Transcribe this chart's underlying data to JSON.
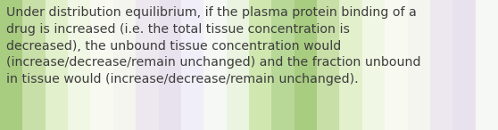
{
  "text": "Under distribution equilibrium, if the plasma protein binding of a\ndrug is increased (i.e. the total tissue concentration is\ndecreased), the unbound tissue concentration would\n(increase/decrease/remain unchanged) and the fraction unbound\nin tissue would (increase/decrease/remain unchanged).",
  "text_color": "#3d3d3d",
  "font_size": 10.2,
  "fig_width": 5.58,
  "fig_height": 1.46,
  "dpi": 100,
  "stripe_pattern": [
    "#9dc87a",
    "#b8d99a",
    "#d4edb8",
    "#e8f4dc",
    "#f2f8ec",
    "#f8faf4",
    "#f5f5f0",
    "#f0ede8",
    "#ece8f0",
    "#e8e4ee",
    "#f0f4f8",
    "#e8f4dc",
    "#d4edb8",
    "#b8d99a"
  ],
  "n_stripes": 22
}
